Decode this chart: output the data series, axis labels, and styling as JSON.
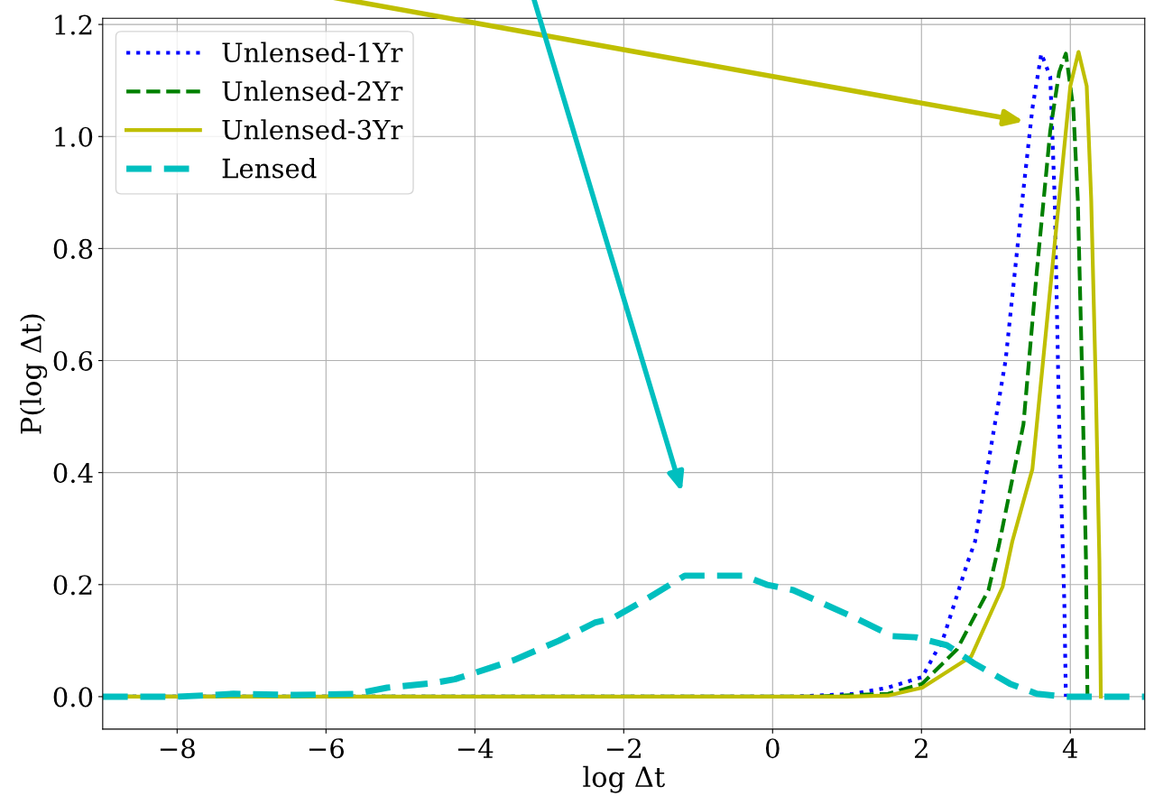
{
  "chart_data": {
    "type": "line",
    "xlabel": "log Δt",
    "ylabel": "P(log Δt)",
    "xlim": [
      -9,
      5
    ],
    "ylim": [
      -0.058,
      1.211
    ],
    "xticks": [
      {
        "value": -8,
        "label": "−8"
      },
      {
        "value": -6,
        "label": "−6"
      },
      {
        "value": -4,
        "label": "−4"
      },
      {
        "value": -2,
        "label": "−2"
      },
      0,
      2,
      4
    ],
    "yticks": [
      {
        "value": 0,
        "label": "0.0"
      },
      0.2,
      0.4,
      0.6,
      0.8,
      {
        "value": 1,
        "label": "1.0"
      },
      1.2
    ],
    "grid": true,
    "legend": "top left",
    "series": [
      {
        "name": "Unlensed-1Yr",
        "color": "#0000ff",
        "line_style": "dotted",
        "x": [
          -9,
          0.3,
          1.08,
          1.55,
          2.01,
          2.29,
          2.62,
          2.72,
          3.13,
          3.37,
          3.49,
          3.61,
          3.73,
          3.79,
          3.85,
          3.92,
          3.94
        ],
        "values": [
          0,
          0,
          0.005,
          0.016,
          0.035,
          0.103,
          0.24,
          0.277,
          0.6,
          0.905,
          1.05,
          1.148,
          1.107,
          0.889,
          0.486,
          0.164,
          0
        ]
      },
      {
        "name": "Unlensed-2Yr",
        "color": "#008000",
        "line_style": "dashed",
        "x": [
          -9,
          0.5,
          1.55,
          2.01,
          2.48,
          2.9,
          3.04,
          3.37,
          3.55,
          3.73,
          3.85,
          3.94,
          4.04,
          4.1,
          4.16,
          4.21,
          4.23
        ],
        "values": [
          0,
          0,
          0.005,
          0.023,
          0.085,
          0.19,
          0.27,
          0.486,
          0.76,
          1.01,
          1.115,
          1.148,
          1.05,
          0.889,
          0.567,
          0.245,
          0
        ]
      },
      {
        "name": "Unlensed-3Yr",
        "color": "#bfbf00",
        "line_style": "solid",
        "x": [
          -9,
          1.0,
          1.55,
          2.01,
          2.67,
          3.09,
          3.22,
          3.49,
          3.67,
          3.85,
          4.0,
          4.11,
          4.22,
          4.28,
          4.34,
          4.39,
          4.41
        ],
        "values": [
          0,
          0,
          0.002,
          0.016,
          0.072,
          0.196,
          0.277,
          0.406,
          0.648,
          0.889,
          1.09,
          1.151,
          1.09,
          0.889,
          0.567,
          0.245,
          0
        ]
      },
      {
        "name": "Lensed",
        "color": "#00bfbf",
        "line_style": "dashed",
        "x": [
          -9,
          -8,
          -7.5,
          -7.24,
          -6.4,
          -5.6,
          -5.18,
          -4.57,
          -4.27,
          -3.78,
          -3.48,
          -2.87,
          -2.39,
          -2.15,
          -1.66,
          -1.18,
          -0.39,
          -0.08,
          0.28,
          1.07,
          1.61,
          1.92,
          2.34,
          2.7,
          3.19,
          3.55,
          3.92,
          5
        ],
        "values": [
          0,
          0,
          0.003,
          0.005,
          0.003,
          0.005,
          0.016,
          0.024,
          0.031,
          0.052,
          0.065,
          0.1,
          0.132,
          0.14,
          0.177,
          0.216,
          0.216,
          0.2,
          0.19,
          0.143,
          0.108,
          0.106,
          0.092,
          0.06,
          0.023,
          0.005,
          0,
          0
        ]
      }
    ]
  }
}
